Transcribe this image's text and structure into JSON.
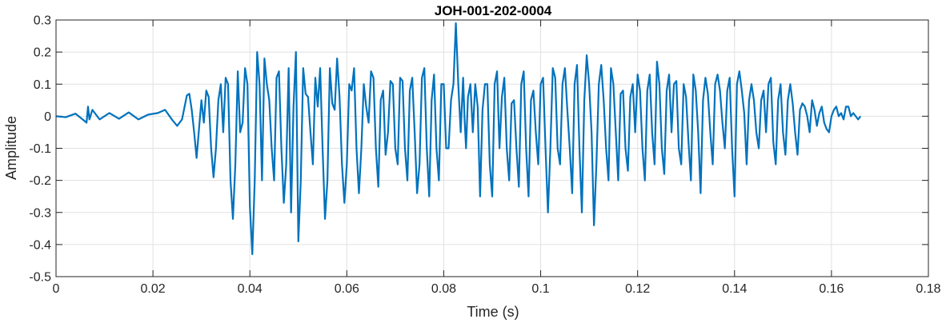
{
  "chart_data": {
    "type": "line",
    "title": "JOH-001-202-0004",
    "xlabel": "Time (s)",
    "ylabel": "Amplitude",
    "xlim": [
      0,
      0.18
    ],
    "ylim": [
      -0.5,
      0.3
    ],
    "grid": true,
    "xticks": [
      0,
      0.02,
      0.04,
      0.06,
      0.08,
      0.1,
      0.12,
      0.14,
      0.16,
      0.18
    ],
    "xtick_labels": [
      "0",
      "0.02",
      "0.04",
      "0.06",
      "0.08",
      "0.1",
      "0.12",
      "0.14",
      "0.16",
      "0.18"
    ],
    "yticks": [
      -0.5,
      -0.4,
      -0.3,
      -0.2,
      -0.1,
      0,
      0.1,
      0.2,
      0.3
    ],
    "ytick_labels": [
      "-0.5",
      "-0.4",
      "-0.3",
      "-0.2",
      "-0.1",
      "0",
      "0.1",
      "0.2",
      "0.3"
    ],
    "series": [
      {
        "color": "#0072bd",
        "x": [
          0,
          0.002,
          0.004,
          0.0055,
          0.0063,
          0.0066,
          0.0069,
          0.0075,
          0.009,
          0.011,
          0.013,
          0.015,
          0.017,
          0.019,
          0.021,
          0.0225,
          0.024,
          0.025,
          0.026,
          0.027,
          0.0275,
          0.028,
          0.0285,
          0.029,
          0.0295,
          0.03,
          0.0305,
          0.031,
          0.0315,
          0.032,
          0.0325,
          0.033,
          0.0335,
          0.034,
          0.0345,
          0.035,
          0.0355,
          0.036,
          0.0365,
          0.037,
          0.0375,
          0.038,
          0.0385,
          0.039,
          0.0395,
          0.04,
          0.0405,
          0.041,
          0.0415,
          0.042,
          0.0425,
          0.043,
          0.0435,
          0.044,
          0.0445,
          0.045,
          0.0455,
          0.046,
          0.0465,
          0.047,
          0.0475,
          0.048,
          0.0485,
          0.049,
          0.0495,
          0.05,
          0.0505,
          0.051,
          0.0515,
          0.052,
          0.0525,
          0.053,
          0.0535,
          0.054,
          0.0545,
          0.055,
          0.0555,
          0.056,
          0.0565,
          0.057,
          0.0575,
          0.058,
          0.0585,
          0.059,
          0.0595,
          0.06,
          0.0605,
          0.061,
          0.0615,
          0.062,
          0.0625,
          0.063,
          0.0635,
          0.064,
          0.0645,
          0.065,
          0.0655,
          0.066,
          0.0665,
          0.067,
          0.0675,
          0.068,
          0.0685,
          0.069,
          0.0695,
          0.07,
          0.0705,
          0.071,
          0.0715,
          0.072,
          0.0725,
          0.073,
          0.0735,
          0.074,
          0.0745,
          0.075,
          0.0755,
          0.076,
          0.0765,
          0.077,
          0.0775,
          0.078,
          0.0785,
          0.079,
          0.0795,
          0.08,
          0.0805,
          0.081,
          0.0815,
          0.082,
          0.0825,
          0.083,
          0.0835,
          0.084,
          0.0843,
          0.0846,
          0.085,
          0.0855,
          0.086,
          0.0865,
          0.087,
          0.0875,
          0.088,
          0.0885,
          0.089,
          0.0895,
          0.09,
          0.0905,
          0.091,
          0.0915,
          0.092,
          0.0925,
          0.093,
          0.0935,
          0.094,
          0.0945,
          0.095,
          0.0955,
          0.096,
          0.0965,
          0.097,
          0.0975,
          0.098,
          0.0985,
          0.099,
          0.0995,
          0.1,
          0.1005,
          0.101,
          0.1015,
          0.102,
          0.1025,
          0.103,
          0.1035,
          0.104,
          0.1045,
          0.105,
          0.1055,
          0.106,
          0.1065,
          0.107,
          0.1075,
          0.108,
          0.1085,
          0.109,
          0.1095,
          0.11,
          0.1105,
          0.111,
          0.1115,
          0.112,
          0.1125,
          0.113,
          0.1135,
          0.114,
          0.1145,
          0.115,
          0.1155,
          0.116,
          0.1165,
          0.117,
          0.1175,
          0.118,
          0.1185,
          0.119,
          0.1195,
          0.12,
          0.1205,
          0.121,
          0.1215,
          0.122,
          0.1225,
          0.123,
          0.1235,
          0.124,
          0.1245,
          0.125,
          0.1255,
          0.126,
          0.1265,
          0.127,
          0.1275,
          0.128,
          0.1285,
          0.129,
          0.1295,
          0.13,
          0.1305,
          0.131,
          0.1315,
          0.132,
          0.1325,
          0.133,
          0.1335,
          0.134,
          0.1345,
          0.135,
          0.1355,
          0.136,
          0.1365,
          0.137,
          0.1375,
          0.138,
          0.1385,
          0.139,
          0.1395,
          0.14,
          0.1405,
          0.141,
          0.1415,
          0.142,
          0.1425,
          0.143,
          0.1435,
          0.144,
          0.1445,
          0.145,
          0.1455,
          0.146,
          0.1465,
          0.147,
          0.1475,
          0.148,
          0.1485,
          0.149,
          0.1495,
          0.15,
          0.1505,
          0.151,
          0.1515,
          0.152,
          0.1525,
          0.153,
          0.1535,
          0.154,
          0.1545,
          0.155,
          0.1555,
          0.156,
          0.1565,
          0.157,
          0.1575,
          0.158,
          0.1585,
          0.159,
          0.1595,
          0.16,
          0.1605,
          0.161,
          0.1615,
          0.162,
          0.1625,
          0.163,
          0.1635,
          0.164,
          0.1645,
          0.165,
          0.1655,
          0.166
        ],
        "y": [
          0,
          -0.003,
          0.008,
          -0.01,
          -0.02,
          0.03,
          -0.01,
          0.02,
          -0.01,
          0.01,
          -0.008,
          0.012,
          -0.01,
          0.005,
          0.01,
          0.02,
          -0.012,
          -0.03,
          -0.01,
          0.065,
          0.07,
          0.02,
          -0.05,
          -0.13,
          -0.04,
          0.05,
          -0.02,
          0.08,
          0.06,
          -0.1,
          -0.19,
          -0.1,
          0.05,
          0.1,
          -0.05,
          0.12,
          0.1,
          -0.2,
          -0.32,
          -0.15,
          0.14,
          -0.05,
          -0.02,
          0.15,
          0.1,
          -0.28,
          -0.43,
          -0.2,
          0.2,
          0.1,
          -0.2,
          0.18,
          0.1,
          0.05,
          -0.1,
          -0.2,
          0.12,
          0.14,
          -0.1,
          -0.27,
          -0.15,
          0.15,
          -0.3,
          0.03,
          0.2,
          -0.39,
          -0.2,
          0.15,
          0.07,
          0.06,
          -0.05,
          -0.15,
          0.12,
          0.03,
          0.15,
          -0.1,
          -0.32,
          -0.2,
          0.15,
          0.04,
          0.02,
          0.18,
          0.06,
          -0.15,
          -0.27,
          -0.15,
          0.1,
          0.08,
          0.15,
          -0.1,
          -0.24,
          -0.1,
          0.1,
          0.03,
          -0.02,
          0.14,
          0.12,
          -0.1,
          -0.22,
          0.05,
          0.08,
          -0.12,
          -0.05,
          0.11,
          0.1,
          -0.1,
          -0.15,
          0.12,
          0.11,
          -0.1,
          -0.2,
          0.08,
          0.12,
          -0.05,
          -0.24,
          -0.15,
          0.12,
          0.15,
          -0.1,
          -0.25,
          0.05,
          0.13,
          -0.1,
          -0.2,
          0.1,
          0.1,
          -0.1,
          -0.1,
          0.05,
          0.1,
          0.29,
          0.1,
          -0.05,
          0.12,
          -0.01,
          -0.1,
          0.06,
          0.1,
          -0.05,
          0.1,
          0.03,
          -0.25,
          0.02,
          0.1,
          0.1,
          -0.15,
          -0.25,
          0.1,
          0.14,
          -0.1,
          0.06,
          0.12,
          -0.1,
          -0.2,
          0.04,
          0.05,
          -0.1,
          -0.22,
          0.1,
          0.14,
          -0.1,
          -0.25,
          0.05,
          0.08,
          -0.05,
          -0.15,
          0.1,
          0.12,
          -0.1,
          -0.3,
          -0.1,
          0.15,
          0.12,
          -0.1,
          -0.15,
          0.1,
          0.15,
          0.02,
          -0.1,
          -0.24,
          0.1,
          0.16,
          -0.1,
          -0.3,
          0.05,
          0.19,
          0.1,
          -0.05,
          -0.34,
          -0.15,
          0.1,
          0.16,
          0.05,
          -0.1,
          -0.2,
          0.15,
          0.1,
          -0.05,
          -0.2,
          0.07,
          0.08,
          -0.1,
          -0.17,
          0.06,
          0.1,
          -0.05,
          0.13,
          0.08,
          -0.1,
          -0.2,
          0.08,
          0.13,
          -0.05,
          -0.15,
          0.17,
          0.1,
          -0.1,
          -0.18,
          0.08,
          0.13,
          -0.05,
          0.1,
          0.11,
          -0.1,
          -0.15,
          0.1,
          0.06,
          -0.08,
          -0.2,
          0.13,
          0.08,
          -0.05,
          -0.24,
          0.05,
          0.12,
          0.07,
          -0.05,
          -0.15,
          0.1,
          0.13,
          0.08,
          -0.02,
          -0.1,
          0.08,
          0.12,
          -0.1,
          -0.25,
          0.1,
          0.14,
          0.08,
          0.01,
          -0.15,
          0.05,
          0.1,
          0.05,
          -0.05,
          -0.1,
          0.05,
          0.08,
          -0.05,
          0.1,
          0.12,
          -0.08,
          -0.15,
          0.05,
          0.1,
          -0.05,
          -0.12,
          0.05,
          0.1,
          0.04,
          -0.05,
          -0.12,
          0.02,
          0.04,
          0.03,
          0.0,
          -0.05,
          0.05,
          0.02,
          -0.03,
          0.01,
          0.03,
          -0.02,
          -0.04,
          -0.05,
          0.0,
          0.02,
          0.03,
          0.0,
          0.01,
          -0.01,
          0.03,
          0.03,
          0.0,
          0.01,
          0.0,
          -0.01,
          0.0
        ]
      }
    ]
  }
}
